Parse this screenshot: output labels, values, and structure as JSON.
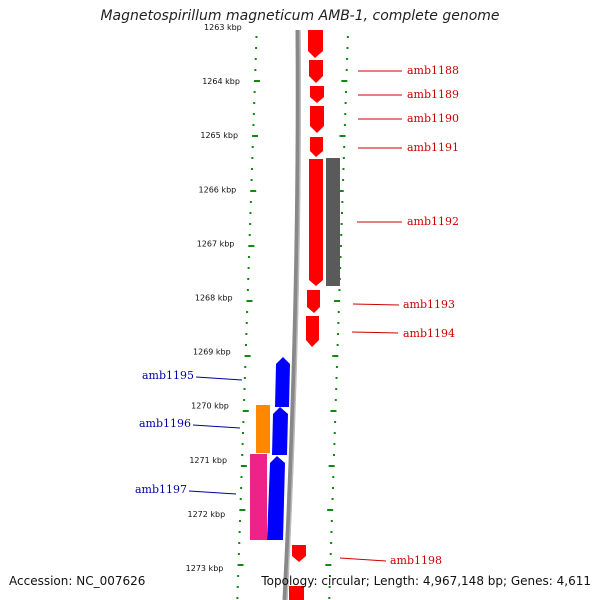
{
  "title": "Magnetospirillum magneticum AMB-1, complete genome",
  "footer": {
    "accession": "Accession: NC_007626",
    "summary": "Topology: circular; Length: 4,967,148 bp; Genes: 4,611"
  },
  "colors": {
    "forward": "#ff0000",
    "reverse": "#0000ff",
    "rna": "#ff8800",
    "pseudogene": "#ee2288",
    "other": "#555555",
    "backbone": "#888888",
    "ticks": "#118811"
  },
  "ruler": [
    "1263 kbp",
    "1264 kbp",
    "1265 kbp",
    "1266 kbp",
    "1267 kbp",
    "1268 kbp",
    "1269 kbp",
    "1270 kbp",
    "1271 kbp",
    "1272 kbp",
    "1273 kbp"
  ],
  "genes": [
    {
      "label": "amb1188",
      "strand": "forward"
    },
    {
      "label": "amb1189",
      "strand": "forward"
    },
    {
      "label": "amb1190",
      "strand": "forward"
    },
    {
      "label": "amb1191",
      "strand": "forward"
    },
    {
      "label": "amb1192",
      "strand": "forward"
    },
    {
      "label": "amb1193",
      "strand": "forward"
    },
    {
      "label": "amb1194",
      "strand": "forward"
    },
    {
      "label": "amb1195",
      "strand": "reverse"
    },
    {
      "label": "amb1196",
      "strand": "reverse"
    },
    {
      "label": "amb1197",
      "strand": "reverse"
    },
    {
      "label": "amb1198",
      "strand": "forward"
    }
  ]
}
